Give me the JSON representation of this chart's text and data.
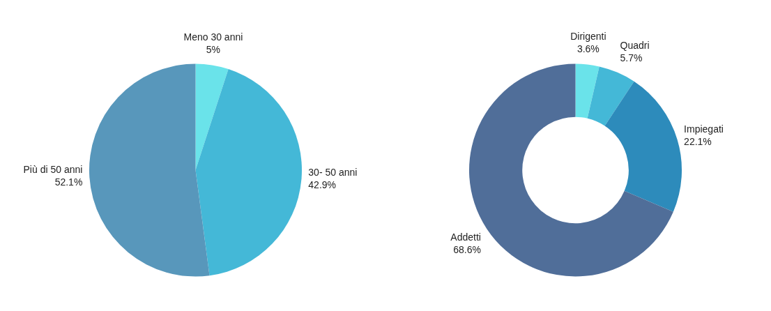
{
  "chart_data": [
    {
      "type": "pie",
      "categories": [
        "Meno 30 anni",
        "30- 50 anni",
        "Più di 50 anni"
      ],
      "values": [
        5,
        42.9,
        52.1
      ],
      "colors": [
        "#6ae3ea",
        "#44b8d7",
        "#5897bb"
      ],
      "value_labels": [
        "5%",
        "42.9%",
        "52.1%"
      ]
    },
    {
      "type": "donut",
      "categories": [
        "Dirigenti",
        "Quadri",
        "Impiegati",
        "Addetti"
      ],
      "values": [
        3.6,
        5.7,
        22.1,
        68.6
      ],
      "colors": [
        "#6ae3ea",
        "#44b8d7",
        "#2d8bbb",
        "#506e99"
      ],
      "value_labels": [
        "3.6%",
        "5.7%",
        "22.1%",
        "68.6%"
      ]
    }
  ]
}
